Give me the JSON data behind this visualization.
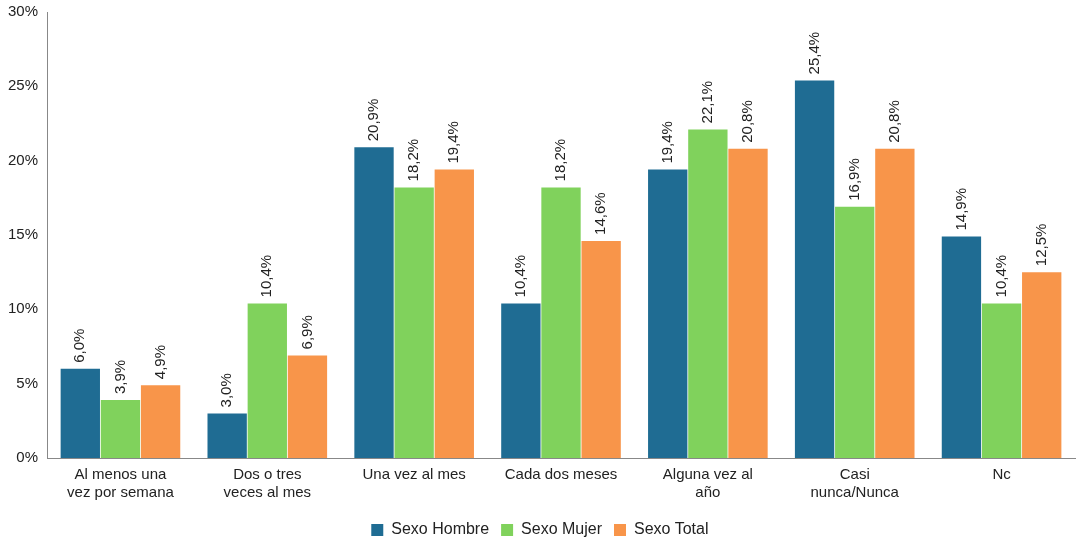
{
  "chart_data": {
    "type": "bar",
    "categories": [
      "Al menos una vez por semana",
      "Dos o tres veces al mes",
      "Una vez al mes",
      "Cada dos meses",
      "Alguna vez al año",
      "Casi nunca/Nunca",
      "Nc"
    ],
    "series": [
      {
        "name": "Sexo Hombre",
        "color": "#1f6c93",
        "values": [
          6.0,
          3.0,
          20.9,
          10.4,
          19.4,
          25.4,
          14.9
        ],
        "value_labels": [
          "6,0%",
          "3,0%",
          "20,9%",
          "10,4%",
          "19,4%",
          "25,4%",
          "14,9%"
        ]
      },
      {
        "name": "Sexo Mujer",
        "color": "#80d25c",
        "values": [
          3.9,
          10.4,
          18.2,
          18.2,
          22.1,
          16.9,
          10.4
        ],
        "value_labels": [
          "3,9%",
          "10,4%",
          "18,2%",
          "18,2%",
          "22,1%",
          "16,9%",
          "10,4%"
        ]
      },
      {
        "name": "Sexo Total",
        "color": "#f8954a",
        "values": [
          4.9,
          6.9,
          19.4,
          14.6,
          20.8,
          20.8,
          12.5
        ],
        "value_labels": [
          "4,9%",
          "6,9%",
          "19,4%",
          "14,6%",
          "20,8%",
          "20,8%",
          "12,5%"
        ]
      }
    ],
    "ylim": [
      0,
      30
    ],
    "yticks": [
      {
        "value": 0,
        "label": "0%"
      },
      {
        "value": 5,
        "label": "5%"
      },
      {
        "value": 10,
        "label": "10%"
      },
      {
        "value": 15,
        "label": "15%"
      },
      {
        "value": 20,
        "label": "20%"
      },
      {
        "value": 25,
        "label": "25%"
      },
      {
        "value": 30,
        "label": "30%"
      }
    ],
    "grid": false,
    "legend": "bottom"
  }
}
